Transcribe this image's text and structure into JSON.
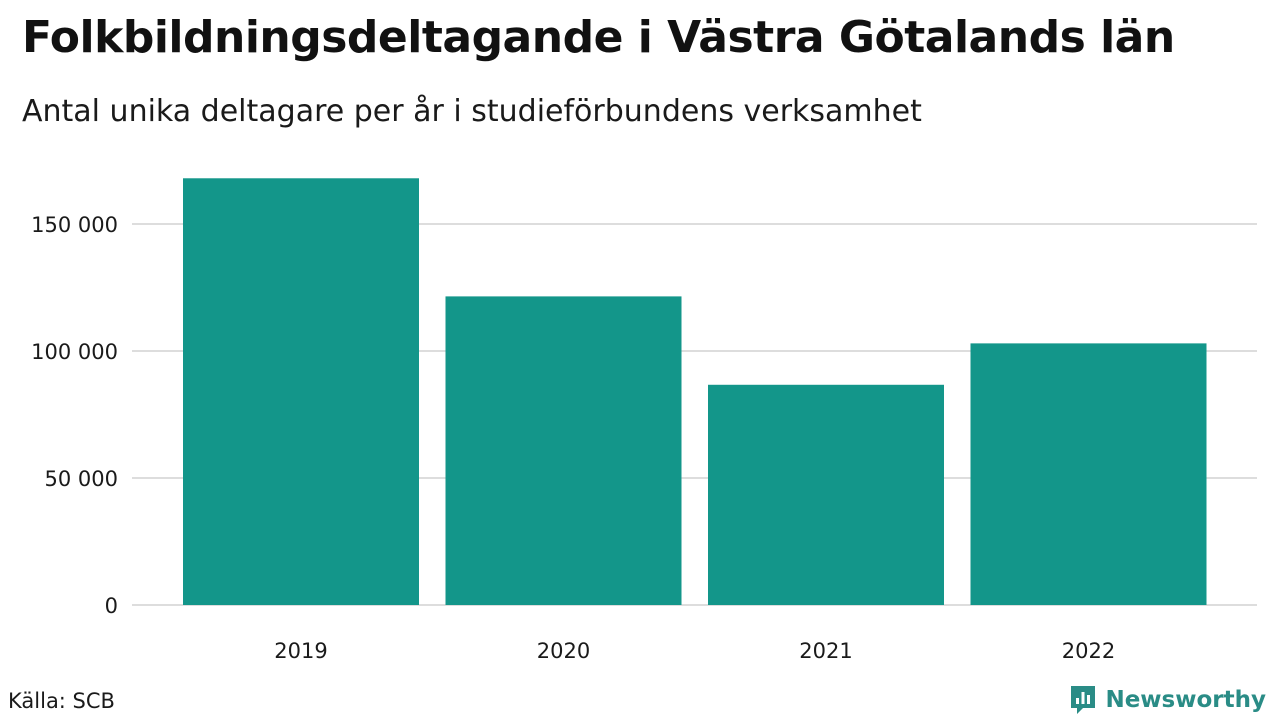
{
  "header": {
    "title": "Folkbildningsdeltagande i Västra Götalands län",
    "subtitle": "Antal unika deltagare per år i studieförbundens verksamhet"
  },
  "chart_data": {
    "type": "bar",
    "categories": [
      "2019",
      "2020",
      "2021",
      "2022"
    ],
    "values": [
      168000,
      121500,
      86700,
      103000
    ],
    "title": "Folkbildningsdeltagande i Västra Götalands län",
    "subtitle": "Antal unika deltagare per år i studieförbundens verksamhet",
    "xlabel": "",
    "ylabel": "",
    "ylim": [
      0,
      170000
    ],
    "yticks": [
      0,
      50000,
      100000,
      150000
    ],
    "ytick_labels": [
      "0",
      "50 000",
      "100 000",
      "150 000"
    ],
    "grid": true,
    "bar_color": "#13968a",
    "grid_color": "#dddddd"
  },
  "footer": {
    "source": "Källa: SCB",
    "brand": "Newsworthy",
    "brand_icon": "bar-chart-speech-bubble-icon",
    "brand_color": "#2a8c86"
  }
}
